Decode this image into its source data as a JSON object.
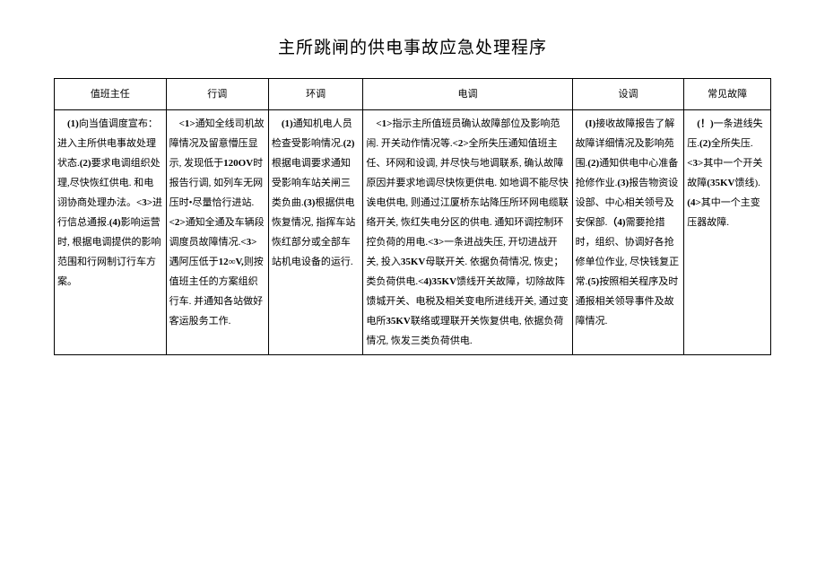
{
  "title": "主所跳闸的供电事故应急处理程序",
  "columns": {
    "widths": [
      "15.6%",
      "14.3%",
      "13.2%",
      "29.2%",
      "15.6%",
      "12.1%"
    ],
    "headers": [
      "值班主任",
      "行调",
      "环调",
      "电调",
      "设调",
      "常见故障"
    ]
  },
  "cells": {
    "c0": [
      {
        "b": "(1)",
        "t": "向当值调度宣布：进入主所供电事故处理状态."
      },
      {
        "b": "(2)",
        "t": "要求电调组织处理,尽快恢红供电. 和电诩协商处理办法。"
      },
      {
        "b": "<3>",
        "t": "进行信总通报."
      },
      {
        "b": "(4)",
        "t": "影响运营时, 根据电调提供的影响范围和行网制订行车方案。"
      }
    ],
    "c1": [
      {
        "b": "<1>",
        "t": "通知全线司机故障情况及留意懵压显示, 发现低于"
      },
      {
        "b": "120OV",
        "t": "时报告行调, 如列车无网压时•尽量恰行进站."
      },
      {
        "b": "<2>",
        "t": "通知全通及车辆段调度员故障情况."
      },
      {
        "b": "<3>",
        "t": "遇阿压低于"
      },
      {
        "b": "12∞V,",
        "t": "则按值班主任的方案组织行车. 并通知各站做好客运股务工作."
      }
    ],
    "c2": [
      {
        "b": "(1)",
        "t": "通知机电人员检查受影响情况."
      },
      {
        "b": "(2)",
        "t": "根据电调要求通知受影响车站关闸三类负曲."
      },
      {
        "b": "(3)",
        "t": "根据供电恢复情况, 指挥车站恢红部分或全部车站机电设备的运行."
      }
    ],
    "c3": [
      {
        "b": "<1>",
        "t": "指示主所值班员确认故障部位及影响范闹. 开关动作情况等."
      },
      {
        "b": "<2>",
        "t": "全所失压通知值班主任、环网和设调, 并尽快与地调联系, 确认故障原因并要求地调尽快恢更供电. 如地调不能尽快诶电供电, 则通过江厦桥东站降压所环网电缆联络开关, 恢红失电分区的供电. 通知环调控制环控负荷的用电."
      },
      {
        "b": "<3>",
        "t": "一条进战失压, 开切进战开关, 投入"
      },
      {
        "b": "35KV",
        "t": "母联开关. 依据负荷情况, 恢史；类负荷供电."
      },
      {
        "b": "<4)35KV",
        "t": "馈线开关故障，切除故阵馈城开关、电税及相关变电所进线开关, 通过变电所"
      },
      {
        "b": "35KV",
        "t": "联络或理联开关恢复供电, 依据负荷情况, 恢发三类负荷供电."
      }
    ],
    "c4": [
      {
        "b": "(I)",
        "t": "接收故障报告了解故障详细情况及影响苑围."
      },
      {
        "b": "(2)",
        "t": "通知供电中心准备抢修作业."
      },
      {
        "b": "(3)",
        "t": "报告物资设设部、中心相关领号及安保部."
      },
      {
        "b": "（4)",
        "t": "需要抢措时，组织、协调好各抢修单位作业, 尽快钱复正常."
      },
      {
        "b": "(5)",
        "t": "按照相关程序及时通报相关领导事件及故障情况."
      }
    ],
    "c5": [
      {
        "b": "(！)",
        "t": "一条进线失压."
      },
      {
        "b": "(2)",
        "t": "全所失压."
      },
      {
        "b": "<3>",
        "t": "其中一个开关故障"
      },
      {
        "b": "(35KV",
        "t": "馈线)."
      },
      {
        "b": "(4>",
        "t": "其中一个主变压器故障."
      }
    ]
  },
  "style": {
    "background": "#ffffff",
    "border_color": "#000000",
    "title_fontsize": 19,
    "cell_fontsize": 11,
    "line_height": 2.0
  }
}
